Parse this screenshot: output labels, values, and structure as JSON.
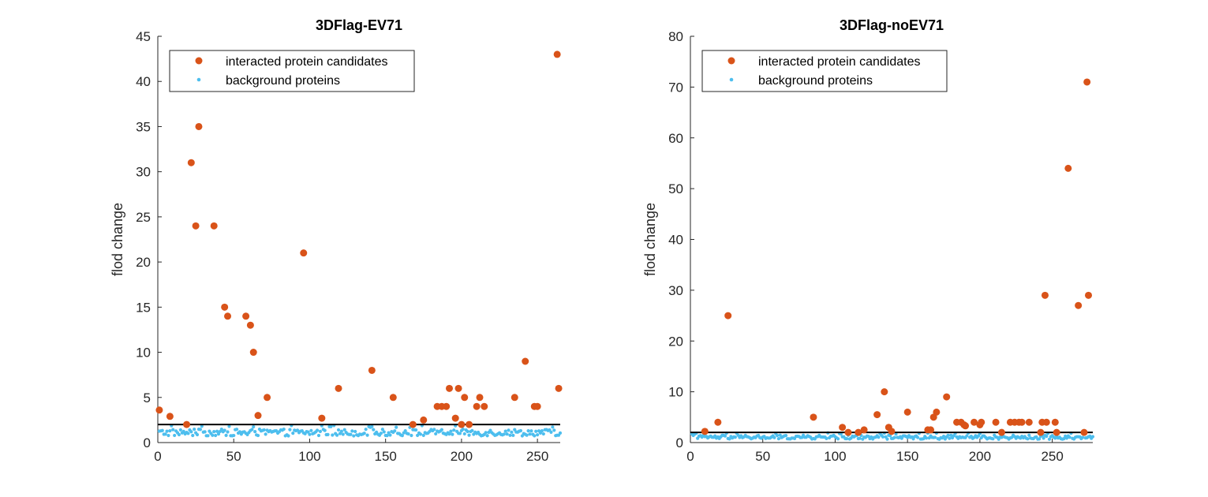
{
  "colors": {
    "candidates": "#D95319",
    "background": "#4DBEEE",
    "threshold": "#000000",
    "axis": "#262626"
  },
  "chart_data": [
    {
      "type": "scatter",
      "title": "3DFlag-EV71",
      "xlabel": "",
      "ylabel": "flod change",
      "xlim": [
        0,
        265
      ],
      "ylim": [
        0,
        45
      ],
      "xticks": [
        0,
        50,
        100,
        150,
        200,
        250
      ],
      "yticks": [
        0,
        5,
        10,
        15,
        20,
        25,
        30,
        35,
        40,
        45
      ],
      "threshold": 2,
      "legend": {
        "location": "top-left",
        "entries": [
          "interacted protein candidates",
          "background proteins"
        ]
      },
      "series": [
        {
          "name": "interacted protein candidates",
          "marker": "large-dot",
          "points": [
            [
              1,
              3.6
            ],
            [
              8,
              2.9
            ],
            [
              19,
              2.0
            ],
            [
              22,
              31
            ],
            [
              25,
              24
            ],
            [
              27,
              35
            ],
            [
              37,
              24
            ],
            [
              44,
              15
            ],
            [
              46,
              14
            ],
            [
              58,
              14
            ],
            [
              61,
              13
            ],
            [
              63,
              10
            ],
            [
              66,
              3
            ],
            [
              72,
              5
            ],
            [
              96,
              21
            ],
            [
              108,
              2.7
            ],
            [
              119,
              6
            ],
            [
              141,
              8
            ],
            [
              155,
              5
            ],
            [
              168,
              2
            ],
            [
              175,
              2.5
            ],
            [
              184,
              4
            ],
            [
              187,
              4
            ],
            [
              190,
              4
            ],
            [
              192,
              6
            ],
            [
              196,
              2.7
            ],
            [
              198,
              6
            ],
            [
              200,
              2
            ],
            [
              202,
              5
            ],
            [
              205,
              2
            ],
            [
              210,
              4
            ],
            [
              212,
              5
            ],
            [
              215,
              4
            ],
            [
              235,
              5
            ],
            [
              242,
              9
            ],
            [
              248,
              4
            ],
            [
              250,
              4
            ],
            [
              263,
              43
            ],
            [
              264,
              6
            ]
          ]
        },
        {
          "name": "background proteins",
          "marker": "small-dot",
          "count": 265,
          "y_range": [
            0.4,
            1.9
          ],
          "description_points": "dense band of points, one per protein index, between 0.4 and 1.9"
        }
      ]
    },
    {
      "type": "scatter",
      "title": "3DFlag-noEV71",
      "xlabel": "",
      "ylabel": "flod change",
      "xlim": [
        0,
        278
      ],
      "ylim": [
        0,
        80
      ],
      "xticks": [
        0,
        50,
        100,
        150,
        200,
        250
      ],
      "yticks": [
        0,
        10,
        20,
        30,
        40,
        50,
        60,
        70,
        80
      ],
      "threshold": 2,
      "legend": {
        "location": "top-left",
        "entries": [
          "interacted protein candidates",
          "background proteins"
        ]
      },
      "series": [
        {
          "name": "interacted protein candidates",
          "marker": "large-dot",
          "points": [
            [
              10,
              2.2
            ],
            [
              19,
              4
            ],
            [
              26,
              25
            ],
            [
              85,
              5
            ],
            [
              105,
              3
            ],
            [
              109,
              2
            ],
            [
              116,
              2
            ],
            [
              120,
              2.5
            ],
            [
              129,
              5.5
            ],
            [
              134,
              10
            ],
            [
              137,
              3
            ],
            [
              139,
              2.2
            ],
            [
              150,
              6
            ],
            [
              164,
              2.5
            ],
            [
              166,
              2.5
            ],
            [
              168,
              5
            ],
            [
              170,
              6
            ],
            [
              177,
              9
            ],
            [
              184,
              4
            ],
            [
              187,
              4
            ],
            [
              189,
              3.5
            ],
            [
              190,
              3.3
            ],
            [
              196,
              4
            ],
            [
              200,
              3.5
            ],
            [
              201,
              4
            ],
            [
              211,
              4
            ],
            [
              215,
              2
            ],
            [
              221,
              4
            ],
            [
              224,
              4
            ],
            [
              227,
              4
            ],
            [
              229,
              4
            ],
            [
              234,
              4
            ],
            [
              242,
              2
            ],
            [
              243,
              4
            ],
            [
              245,
              29
            ],
            [
              246,
              4
            ],
            [
              252,
              4
            ],
            [
              253,
              2
            ],
            [
              261,
              54
            ],
            [
              268,
              27
            ],
            [
              272,
              2
            ],
            [
              274,
              71
            ],
            [
              275,
              29
            ]
          ]
        },
        {
          "name": "background proteins",
          "marker": "small-dot",
          "count": 278,
          "y_range": [
            0.3,
            1.9
          ],
          "description_points": "dense band of points, one per protein index, between 0.3 and 1.9"
        }
      ]
    }
  ]
}
